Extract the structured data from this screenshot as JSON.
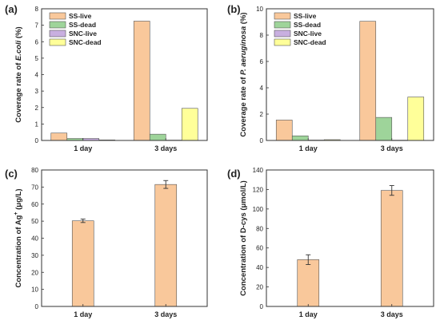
{
  "chart_data": [
    {
      "panel": "(a)",
      "type": "bar",
      "categories": [
        "1 day",
        "3 days"
      ],
      "ylabel_pre": "Coverage rate of ",
      "ylabel_em": "E.coli",
      "ylabel_post": " (%)",
      "ylim": [
        0,
        8
      ],
      "yticks": [
        "0",
        "1",
        "2",
        "3",
        "4",
        "5",
        "6",
        "7",
        "8"
      ],
      "legend": "top-left",
      "series": [
        {
          "name": "SS-live",
          "color": "#f9c89b",
          "values": [
            0.45,
            7.25
          ]
        },
        {
          "name": "SS-dead",
          "color": "#9ed49a",
          "values": [
            0.12,
            0.38
          ]
        },
        {
          "name": "SNC-live",
          "color": "#c8afe0",
          "values": [
            0.12,
            0.02
          ]
        },
        {
          "name": "SNC-dead",
          "color": "#ffff99",
          "values": [
            0.03,
            1.95
          ]
        }
      ]
    },
    {
      "panel": "(b)",
      "type": "bar",
      "categories": [
        "1 day",
        "3 days"
      ],
      "ylabel_pre": "Coverage rate of ",
      "ylabel_em": "P. aeruginosa",
      "ylabel_post": " (%)",
      "ylim": [
        0,
        10
      ],
      "yticks": [
        "0",
        "2",
        "4",
        "6",
        "8",
        "10"
      ],
      "legend": "top-left",
      "series": [
        {
          "name": "SS-live",
          "color": "#f9c89b",
          "values": [
            1.55,
            9.05
          ]
        },
        {
          "name": "SS-dead",
          "color": "#9ed49a",
          "values": [
            0.35,
            1.75
          ]
        },
        {
          "name": "SNC-live",
          "color": "#c8afe0",
          "values": [
            0.03,
            0.02
          ]
        },
        {
          "name": "SNC-dead",
          "color": "#ffff99",
          "values": [
            0.06,
            3.3
          ]
        }
      ]
    },
    {
      "panel": "(c)",
      "type": "bar",
      "categories": [
        "1 day",
        "3 days"
      ],
      "ylabel_pre": "Concentration of Ag",
      "ylabel_sup": "+",
      "ylabel_post": " (μg/L)",
      "ylim": [
        0,
        80
      ],
      "yticks": [
        "0",
        "10",
        "20",
        "30",
        "40",
        "50",
        "60",
        "70",
        "80"
      ],
      "series": [
        {
          "color": "#f9c89b",
          "values": [
            50.2,
            71.5
          ],
          "errors": [
            1.0,
            2.3
          ]
        }
      ]
    },
    {
      "panel": "(d)",
      "type": "bar",
      "categories": [
        "1 day",
        "3 days"
      ],
      "ylabel_pre": "Concentration of D-cys (μmol/L)",
      "ylim": [
        0,
        140
      ],
      "yticks": [
        "0",
        "20",
        "40",
        "60",
        "80",
        "100",
        "120",
        "140"
      ],
      "series": [
        {
          "color": "#f9c89b",
          "values": [
            48,
            119
          ],
          "errors": [
            5,
            5
          ]
        }
      ]
    }
  ]
}
